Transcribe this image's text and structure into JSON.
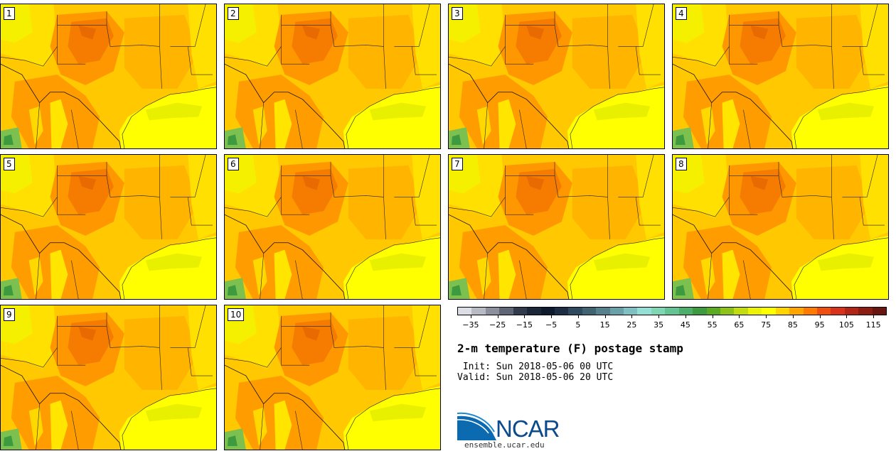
{
  "panels": [
    {
      "label": "1"
    },
    {
      "label": "2"
    },
    {
      "label": "3"
    },
    {
      "label": "4"
    },
    {
      "label": "5"
    },
    {
      "label": "6"
    },
    {
      "label": "7"
    },
    {
      "label": "8"
    },
    {
      "label": "9"
    },
    {
      "label": "10"
    }
  ],
  "colorbar": {
    "colors": [
      "#dcdde5",
      "#b8bac3",
      "#8c909c",
      "#5f6675",
      "#313b4c",
      "#1b2638",
      "#0e1b2f",
      "#1c2d44",
      "#2e4a5f",
      "#41636f",
      "#56818c",
      "#6aa0a8",
      "#7fc0c2",
      "#95e0d6",
      "#7ed6b2",
      "#64c392",
      "#4caf6a",
      "#3d9a3e",
      "#5aaa22",
      "#8dc318",
      "#c2dc10",
      "#ecf309",
      "#ffff00",
      "#ffd400",
      "#ffa500",
      "#ff7a00",
      "#f04e10",
      "#d8331a",
      "#b22617",
      "#8c1d12",
      "#6a1610"
    ],
    "tick_labels": [
      "−35",
      "−25",
      "−15",
      "−5",
      "5",
      "15",
      "25",
      "35",
      "45",
      "55",
      "65",
      "75",
      "85",
      "95",
      "105",
      "115"
    ],
    "tick_values": [
      -35,
      -25,
      -15,
      -5,
      5,
      15,
      25,
      35,
      45,
      55,
      65,
      75,
      85,
      95,
      105,
      115
    ],
    "range": [
      -40,
      120
    ]
  },
  "title": "2-m temperature (F) postage stamp",
  "init_line": " Init: Sun 2018-05-06 00 UTC",
  "valid_line": "Valid: Sun 2018-05-06 20 UTC",
  "logo": {
    "name": "NCAR",
    "site": "ensemble.ucar.edu"
  },
  "map_colors": {
    "gulf": "#ffff00",
    "land_warm": "#ffc000",
    "land_hot": "#ff9a00",
    "land_hottest": "#f57a00",
    "mountains": "#e8f000",
    "cool_green": "#6cc060"
  }
}
